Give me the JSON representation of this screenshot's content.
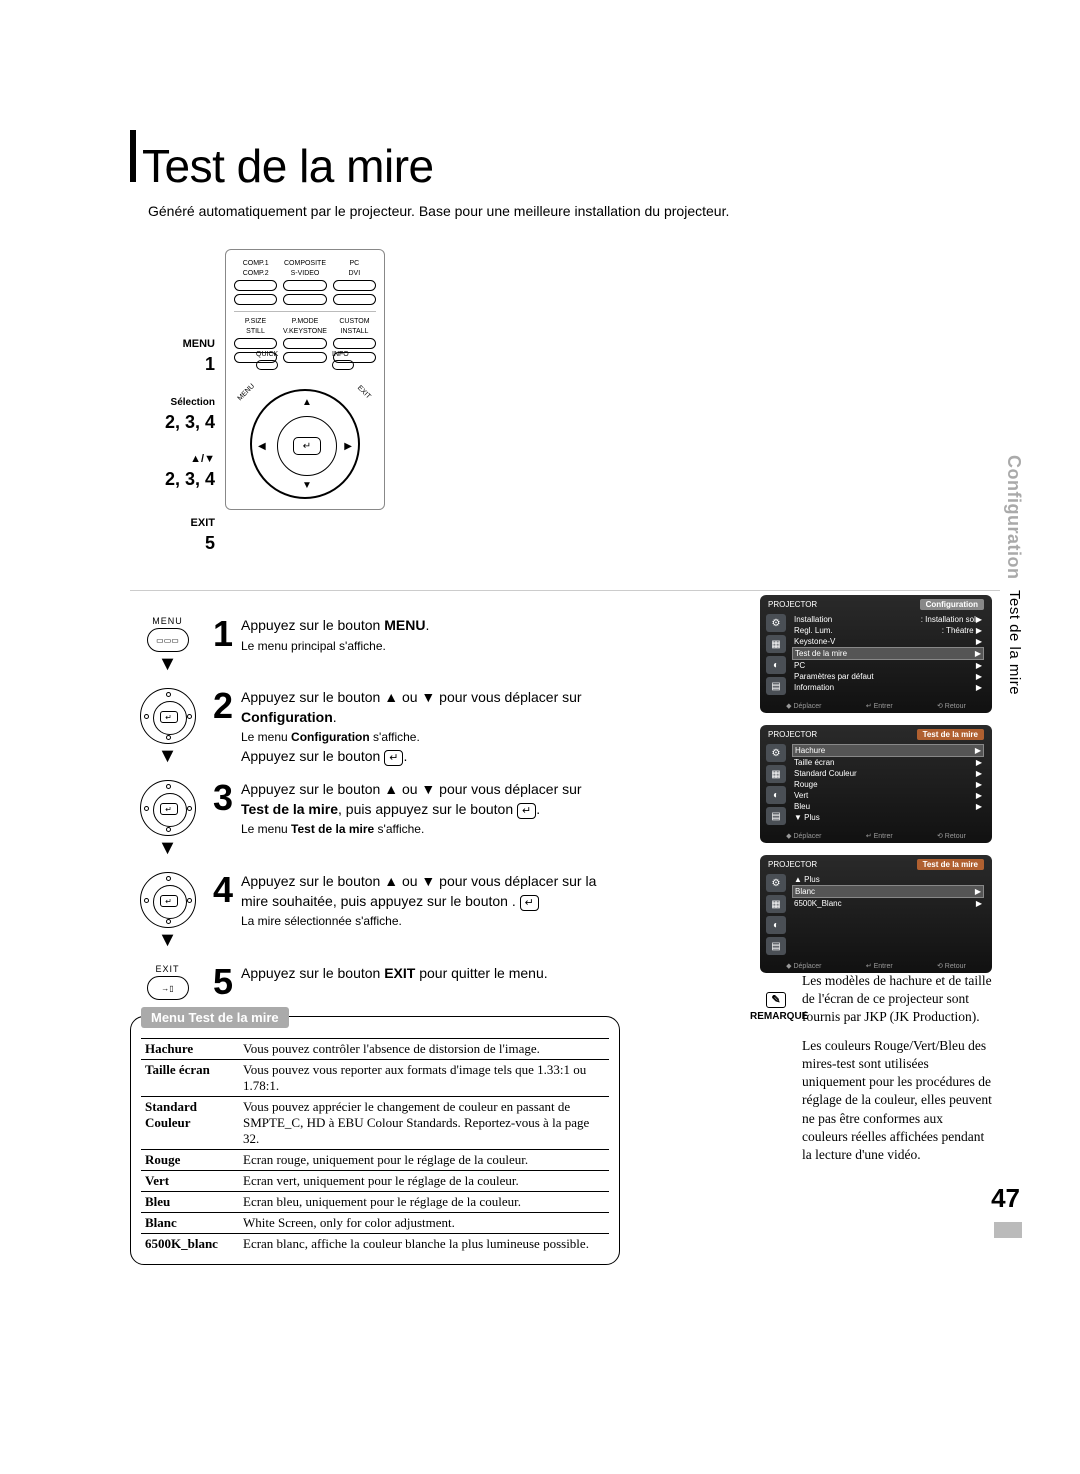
{
  "title": "Test de la mire",
  "subtitle": "Généré automatiquement par le projecteur. Base pour une meilleure installation du projecteur.",
  "side_tab_grey": "Configuration",
  "side_tab_black": "Test de la mire",
  "page_number": "47",
  "remote": {
    "top_labels": [
      "COMP.1",
      "COMPOSITE",
      "PC",
      "COMP.2",
      "S-VIDEO",
      "DVI"
    ],
    "mid_labels": [
      "P.SIZE",
      "P.MODE",
      "CUSTOM",
      "STILL",
      "V.KEYSTONE",
      "INSTALL"
    ],
    "quick": "QUICK",
    "info": "INFO",
    "menu": "MENU",
    "exit": "EXIT"
  },
  "remote_labels": {
    "menu": "MENU",
    "menu_num": "1",
    "selection": "Sélection",
    "sel_num": "2, 3, 4",
    "arrows": "▲/▼",
    "arr_num": "2, 3, 4",
    "exit": "EXIT",
    "exit_num": "5"
  },
  "steps": [
    {
      "num": "1",
      "icon": "menu",
      "line1": "Appuyez sur le bouton ",
      "bold1": "MENU",
      "after1": ".",
      "small": "Le menu principal s'affiche."
    },
    {
      "num": "2",
      "icon": "dpad",
      "line1": "Appuyez sur le bouton ▲ ou ▼ pour vous déplacer sur ",
      "bold1": "Configuration",
      "after1": ".",
      "small": "Le menu ",
      "small_bold": "Configuration",
      "small_after": " s'affiche.",
      "line2": "Appuyez sur le bouton ",
      "enter2": "↵",
      "after2": "."
    },
    {
      "num": "3",
      "icon": "dpad",
      "line1": "Appuyez sur le bouton ▲ ou ▼ pour vous déplacer sur ",
      "bold1": "Test de la mire",
      "after1": ", puis appuyez sur le bouton ",
      "enter1": "↵",
      "after1b": ".",
      "small": "Le menu ",
      "small_bold": "Test de la mire",
      "small_after": " s'affiche."
    },
    {
      "num": "4",
      "icon": "dpad",
      "line1": "Appuyez sur le bouton ▲ ou ▼ pour vous déplacer sur la mire souhaitée, puis appuyez sur le bouton ",
      "enter1": "↵",
      "after1": ".",
      "small": "La mire sélectionnée s'affiche."
    },
    {
      "num": "5",
      "icon": "exit",
      "line1": "Appuyez sur le bouton ",
      "bold1": "EXIT",
      "after1": " pour quitter le menu."
    }
  ],
  "screens": [
    {
      "projector": "PROJECTOR",
      "title": "Configuration",
      "title_color": "grey",
      "items": [
        {
          "l": "Installation",
          "r": ": Installation sol▶"
        },
        {
          "l": "Regl. Lum.",
          "r": ": Théatre   ▶"
        },
        {
          "l": "Keystone-V",
          "r": "▶"
        },
        {
          "l": "Test de la mire",
          "r": "▶",
          "hl": true
        },
        {
          "l": "PC",
          "r": "▶"
        },
        {
          "l": "Paramètres par défaut",
          "r": "▶"
        },
        {
          "l": "Information",
          "r": "▶"
        }
      ],
      "footer": [
        "◆ Déplacer",
        "↵ Entrer",
        "⟲ Retour"
      ]
    },
    {
      "projector": "PROJECTOR",
      "title": "Test de la mire",
      "title_color": "orange",
      "items": [
        {
          "l": "Hachure",
          "r": "▶",
          "hl": true
        },
        {
          "l": "Taille écran",
          "r": "▶"
        },
        {
          "l": "Standard Couleur",
          "r": "▶"
        },
        {
          "l": "Rouge",
          "r": "▶"
        },
        {
          "l": "Vert",
          "r": "▶"
        },
        {
          "l": "Bleu",
          "r": "▶"
        },
        {
          "l": "▼ Plus",
          "r": ""
        }
      ],
      "footer": [
        "◆ Déplacer",
        "↵ Entrer",
        "⟲ Retour"
      ]
    },
    {
      "projector": "PROJECTOR",
      "title": "Test de la mire",
      "title_color": "orange",
      "items": [
        {
          "l": "▲ Plus",
          "r": ""
        },
        {
          "l": "Blanc",
          "r": "▶",
          "hl": true
        },
        {
          "l": "6500K_Blanc",
          "r": "▶"
        }
      ],
      "footer": [
        "◆ Déplacer",
        "↵ Entrer",
        "⟲ Retour"
      ]
    }
  ],
  "menu_box": {
    "title": "Menu Test de la mire",
    "rows": [
      {
        "k": "Hachure",
        "v": "Vous pouvez contrôler l'absence de distorsion de l'image."
      },
      {
        "k": "Taille écran",
        "v": "Vous pouvez vous reporter aux formats d'image tels que 1.33:1 ou 1.78:1."
      },
      {
        "k": "Standard Couleur",
        "v": "Vous pouvez apprécier le changement de couleur en passant de SMPTE_C, HD à EBU Colour Standards. Reportez-vous à la page 32."
      },
      {
        "k": "Rouge",
        "v": "Ecran rouge, uniquement pour le réglage de la couleur."
      },
      {
        "k": "Vert",
        "v": "Ecran vert, uniquement pour le réglage de la couleur."
      },
      {
        "k": "Bleu",
        "v": "Ecran bleu, uniquement pour le réglage de la couleur."
      },
      {
        "k": "Blanc",
        "v": "White Screen, only for color adjustment."
      },
      {
        "k": "6500K_blanc",
        "v": "Ecran blanc, affiche la couleur blanche la plus lumineuse possible."
      }
    ]
  },
  "remark": {
    "label": "REMARQUE",
    "p1": "Les modèles de hachure et de taille de l'écran de ce projecteur sont fournis par JKP (JK Production).",
    "p2": "Les couleurs Rouge/Vert/Bleu des mires-test sont utilisées uniquement pour les procédures de réglage de la couleur, elles peuvent ne pas être conformes aux couleurs réelles affichées pendant la lecture d'une vidéo."
  }
}
